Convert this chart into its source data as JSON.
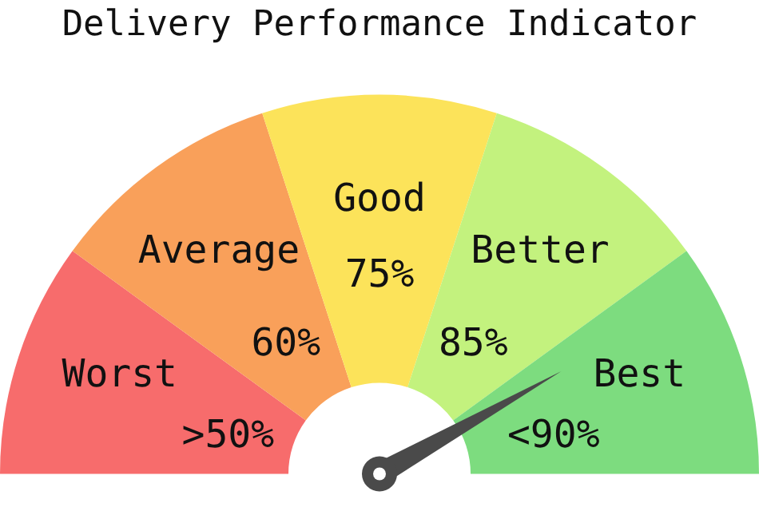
{
  "chart_data": {
    "type": "donut",
    "title": "Delivery Performance Indicator",
    "categories": [
      "Worst",
      "Average",
      "Good",
      "Better",
      "Best"
    ],
    "values": [
      20,
      20,
      20,
      20,
      20
    ],
    "annotations": [
      ">50%",
      "60%",
      "75%",
      "85%",
      "<90%"
    ],
    "colors": [
      "#f76c6c",
      "#f9a05a",
      "#fce35a",
      "#c3f27e",
      "#7ddc7f"
    ],
    "needle": "Best",
    "legend": false
  }
}
